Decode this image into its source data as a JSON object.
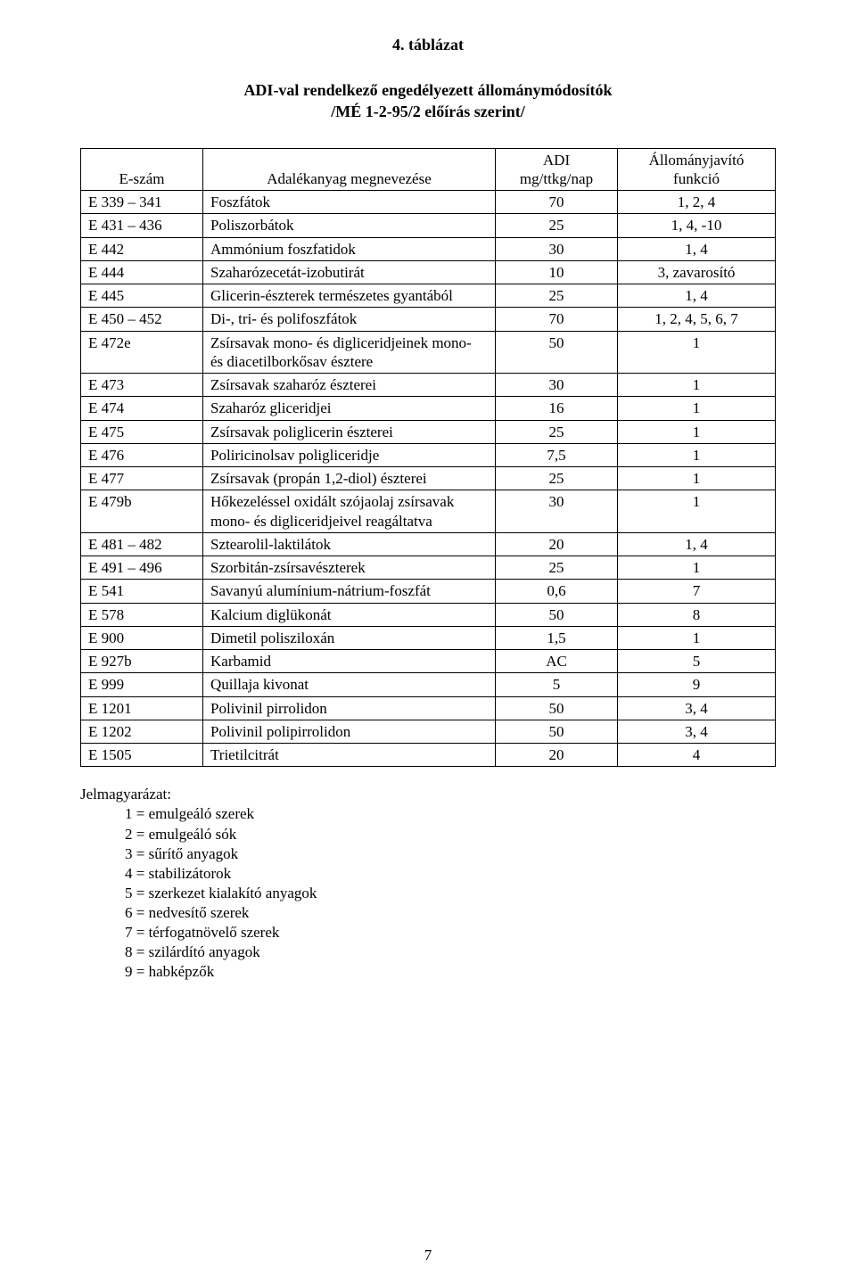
{
  "title": "4. táblázat",
  "subtitle_line1": "ADI-val rendelkező engedélyezett állománymódosítók",
  "subtitle_line2": "/MÉ 1-2-95/2 előírás szerint/",
  "table": {
    "header": {
      "eszam": "E-szám",
      "name": "Adalékanyag megnevezése",
      "adi_line1": "ADI",
      "adi_line2": "mg/ttkg/nap",
      "func_line1": "Állományjavító",
      "func_line2": "funkció"
    },
    "rows": [
      {
        "eszam": "E 339 – 341",
        "name": "Foszfátok",
        "adi": "70",
        "func": "1, 2, 4"
      },
      {
        "eszam": "E 431 – 436",
        "name": "Poliszorbátok",
        "adi": "25",
        "func": "1, 4, -10"
      },
      {
        "eszam": "E 442",
        "name": "Ammónium foszfatidok",
        "adi": "30",
        "func": "1, 4"
      },
      {
        "eszam": "E 444",
        "name": "Szaharózecetát-izobutirát",
        "adi": "10",
        "func": "3, zavarosító"
      },
      {
        "eszam": "E 445",
        "name": "Glicerin-észterek természetes gyantából",
        "adi": "25",
        "func": "1, 4"
      },
      {
        "eszam": "E 450 – 452",
        "name": "Di-, tri- és polifoszfátok",
        "adi": "70",
        "func": "1, 2, 4, 5, 6, 7"
      },
      {
        "eszam": "E 472e",
        "name": "Zsírsavak mono- és digliceridjeinek mono- és diacetilborkősav észtere",
        "adi": "50",
        "func": "1"
      },
      {
        "eszam": "E 473",
        "name": "Zsírsavak szaharóz észterei",
        "adi": "30",
        "func": "1"
      },
      {
        "eszam": "E 474",
        "name": "Szaharóz gliceridjei",
        "adi": "16",
        "func": "1"
      },
      {
        "eszam": "E 475",
        "name": "Zsírsavak poliglicerin észterei",
        "adi": "25",
        "func": "1"
      },
      {
        "eszam": "E 476",
        "name": "Poliricinolsav poligliceridje",
        "adi": "7,5",
        "func": "1"
      },
      {
        "eszam": "E 477",
        "name": "Zsírsavak (propán 1,2-diol) észterei",
        "adi": "25",
        "func": "1"
      },
      {
        "eszam": "E 479b",
        "name": "Hőkezeléssel oxidált szójaolaj zsírsavak mono- és digliceridjeivel reagáltatva",
        "adi": "30",
        "func": "1"
      },
      {
        "eszam": "E 481 – 482",
        "name": "Sztearolil-laktilátok",
        "adi": "20",
        "func": "1, 4"
      },
      {
        "eszam": "E 491 – 496",
        "name": "Szorbitán-zsírsavészterek",
        "adi": "25",
        "func": "1"
      },
      {
        "eszam": "E 541",
        "name": "Savanyú alumínium-nátrium-foszfát",
        "adi": "0,6",
        "func": "7"
      },
      {
        "eszam": "E 578",
        "name": "Kalcium diglükonát",
        "adi": "50",
        "func": "8"
      },
      {
        "eszam": "E 900",
        "name": "Dimetil polisziloxán",
        "adi": "1,5",
        "func": "1"
      },
      {
        "eszam": "E 927b",
        "name": "Karbamid",
        "adi": "AC",
        "func": "5"
      },
      {
        "eszam": "E 999",
        "name": "Quillaja kivonat",
        "adi": "5",
        "func": "9"
      },
      {
        "eszam": "E 1201",
        "name": "Polivinil pirrolidon",
        "adi": "50",
        "func": "3, 4"
      },
      {
        "eszam": "E 1202",
        "name": "Polivinil polipirrolidon",
        "adi": "50",
        "func": "3, 4"
      },
      {
        "eszam": "E 1505",
        "name": "Trietilcitrát",
        "adi": "20",
        "func": "4"
      }
    ]
  },
  "legend": {
    "title": "Jelmagyarázat:",
    "items": [
      "1 = emulgeáló szerek",
      "2 = emulgeáló sók",
      "3 = sűrítő anyagok",
      "4 = stabilizátorok",
      "5 = szerkezet kialakító anyagok",
      "6 = nedvesítő szerek",
      "7 = térfogatnövelő szerek",
      "8 = szilárdító anyagok",
      "9 = habképzők"
    ]
  },
  "page_number": "7"
}
